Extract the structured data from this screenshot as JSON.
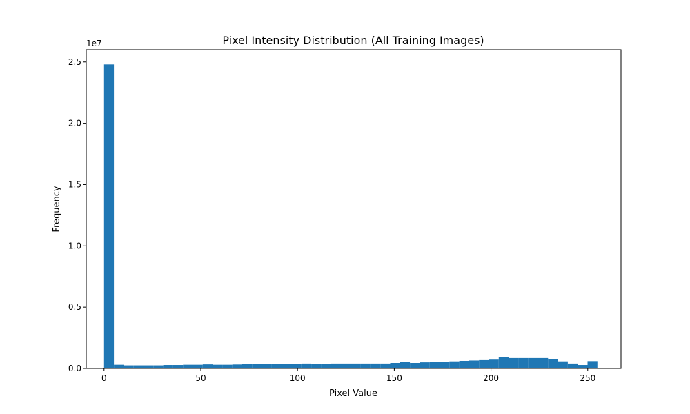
{
  "chart_data": {
    "type": "bar",
    "title": "Pixel Intensity Distribution (All Training Images)",
    "xlabel": "Pixel Value",
    "ylabel": "Frequency",
    "y_multiplier_label": "1e7",
    "bar_color": "#1f77b4",
    "bin_width": 5.1,
    "x_start": 0,
    "xlim": [
      -9.2,
      267.2
    ],
    "ylim": [
      0,
      2.6
    ],
    "x_ticks": [
      0,
      50,
      100,
      150,
      200,
      250
    ],
    "x_tick_labels": [
      "0",
      "50",
      "100",
      "150",
      "200",
      "250"
    ],
    "y_ticks": [
      0,
      0.5,
      1.0,
      1.5,
      2.0,
      2.5
    ],
    "y_tick_labels": [
      "0.0",
      "0.5",
      "1.0",
      "1.5",
      "2.0",
      "2.5"
    ],
    "values": [
      2.48,
      0.03,
      0.025,
      0.025,
      0.025,
      0.025,
      0.028,
      0.028,
      0.03,
      0.03,
      0.033,
      0.03,
      0.03,
      0.032,
      0.035,
      0.035,
      0.035,
      0.035,
      0.035,
      0.035,
      0.04,
      0.035,
      0.035,
      0.04,
      0.04,
      0.04,
      0.04,
      0.04,
      0.04,
      0.045,
      0.055,
      0.045,
      0.05,
      0.052,
      0.055,
      0.058,
      0.062,
      0.065,
      0.068,
      0.072,
      0.095,
      0.085,
      0.085,
      0.085,
      0.085,
      0.075,
      0.058,
      0.04,
      0.028,
      0.06
    ]
  }
}
